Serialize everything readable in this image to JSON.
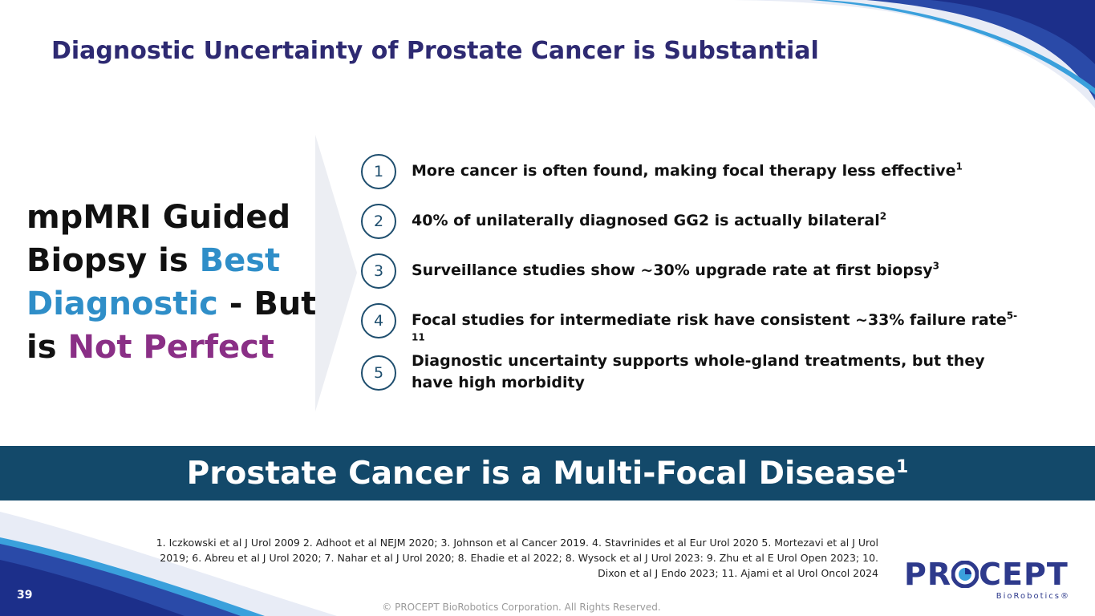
{
  "slide": {
    "title": "Diagnostic Uncertainty of Prostate Cancer is Substantial",
    "statement": {
      "part1": "mpMRI Guided Biopsy is ",
      "highlight1": "Best Diagnostic",
      "part2": " - But is ",
      "highlight2": "Not Perfect"
    },
    "items": [
      {
        "number": "1",
        "text": "More cancer is often found, making focal therapy less effective",
        "sup": "1"
      },
      {
        "number": "2",
        "text": "40% of unilaterally diagnosed GG2 is actually bilateral",
        "sup": "2"
      },
      {
        "number": "3",
        "text": "Surveillance studies show ~30% upgrade rate at first biopsy",
        "sup": "3"
      },
      {
        "number": "4",
        "text": "Focal studies for intermediate risk have consistent ~33% failure rate",
        "sup": "5-11"
      },
      {
        "number": "5",
        "text": "Diagnostic uncertainty supports whole-gland treatments, but they have high morbidity",
        "sup": ""
      }
    ],
    "banner": {
      "text": "Prostate Cancer is a Multi-Focal Disease",
      "sup": "1"
    },
    "references": "1. Iczkowski et al J Urol 2009 2. Adhoot et al NEJM 2020; 3. Johnson et al Cancer 2019. 4. Stavrinides et al Eur Urol 2020 5. Mortezavi et al  J Urol 2019; 6. Abreu et al J Urol 2020; 7. Nahar et al J Urol 2020; 8. Ehadie et al 2022; 8. Wysock et al J Urol 2023: 9. Zhu et al E Urol Open 2023; 10. Dixon et al J Endo 2023; 11. Ajami et al Urol Oncol 2024",
    "copyright": "© PROCEPT BioRobotics Corporation. All Rights Reserved.",
    "page_number": "39",
    "logo": {
      "word_pre": "PR",
      "word_post": "CEPT",
      "sub": "BioRobotics®"
    }
  },
  "colors": {
    "title": "#2e2a72",
    "accent_blue": "#2f8ec8",
    "accent_purple": "#8a2f86",
    "banner": "#13496a",
    "circle_border": "#1e4e6e",
    "swoosh_dark": "#1c2f8a",
    "swoosh_light": "#3aa0dc"
  }
}
